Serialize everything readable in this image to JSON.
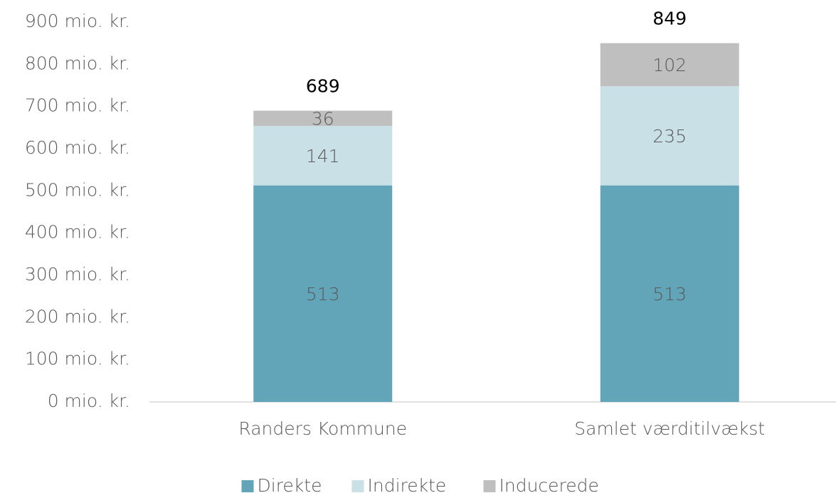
{
  "chart_data": {
    "type": "stacked_bar",
    "categories": [
      "Randers Kommune",
      "Samlet værditilvækst"
    ],
    "series": [
      {
        "name": "Direkte",
        "color": "#62a5b8",
        "values": [
          513,
          513
        ]
      },
      {
        "name": "Indirekte",
        "color": "#c9e0e6",
        "values": [
          141,
          235
        ]
      },
      {
        "name": "Inducerede",
        "color": "#bfbfbf",
        "values": [
          36,
          102
        ]
      }
    ],
    "totals": [
      689,
      849
    ],
    "ylim": [
      0,
      900
    ],
    "yticks": [
      {
        "value": 0,
        "label": "0 mio. kr."
      },
      {
        "value": 100,
        "label": "100 mio. kr."
      },
      {
        "value": 200,
        "label": "200 mio. kr."
      },
      {
        "value": 300,
        "label": "300 mio. kr."
      },
      {
        "value": 400,
        "label": "400 mio. kr."
      },
      {
        "value": 500,
        "label": "500 mio. kr."
      },
      {
        "value": 600,
        "label": "600 mio. kr."
      },
      {
        "value": 700,
        "label": "700 mio. kr."
      },
      {
        "value": 800,
        "label": "800 mio. kr."
      },
      {
        "value": 900,
        "label": "900 mio. kr."
      }
    ],
    "grid": false,
    "legend": "bottom"
  }
}
